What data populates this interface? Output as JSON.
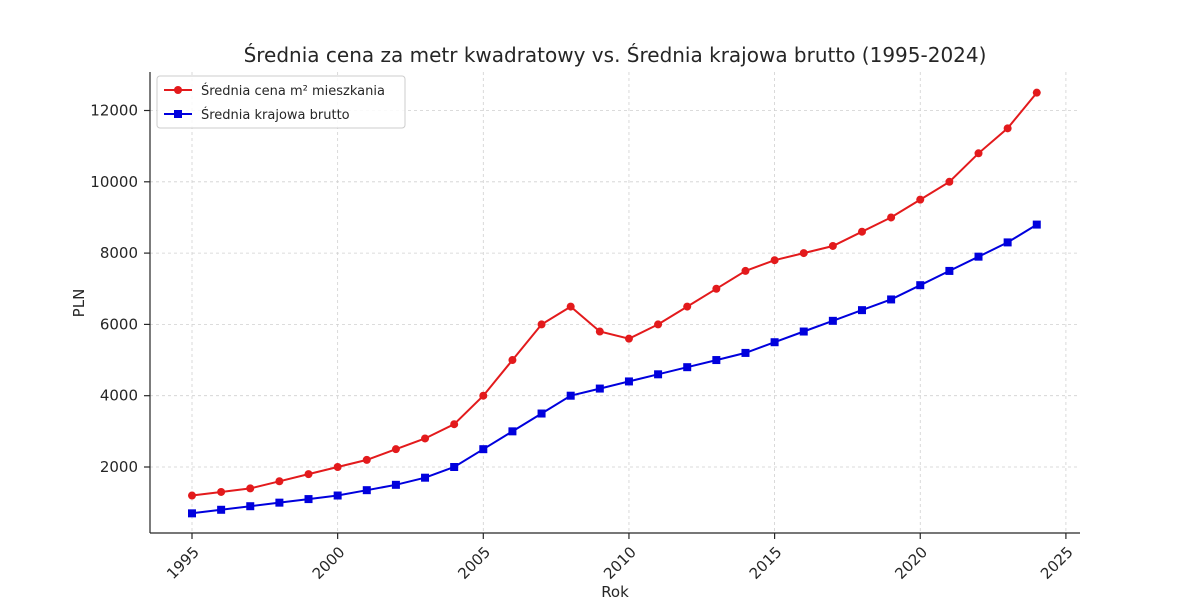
{
  "chart_data": {
    "type": "line",
    "title": "Średnia cena za metr kwadratowy vs. Średnia krajowa brutto (1995-2024)",
    "xlabel": "Rok",
    "ylabel": "PLN",
    "xlim": [
      1994,
      2025.5
    ],
    "ylim": [
      200,
      13000
    ],
    "x_ticks": [
      1995,
      2000,
      2005,
      2010,
      2015,
      2020,
      2025
    ],
    "y_ticks": [
      2000,
      4000,
      6000,
      8000,
      10000,
      12000
    ],
    "grid": true,
    "legend_position": "upper left",
    "x": [
      1995,
      1996,
      1997,
      1998,
      1999,
      2000,
      2001,
      2002,
      2003,
      2004,
      2005,
      2006,
      2007,
      2008,
      2009,
      2010,
      2011,
      2012,
      2013,
      2014,
      2015,
      2016,
      2017,
      2018,
      2019,
      2020,
      2021,
      2022,
      2023,
      2024
    ],
    "series": [
      {
        "name": "Średnia cena m² mieszkania",
        "color": "#e31a1c",
        "marker": "circle",
        "values": [
          1200,
          1300,
          1400,
          1600,
          1800,
          2000,
          2200,
          2500,
          2800,
          3200,
          4000,
          5000,
          6000,
          6500,
          5800,
          5600,
          6000,
          6500,
          7000,
          7500,
          7800,
          8000,
          8200,
          8600,
          9000,
          9500,
          10000,
          10800,
          11500,
          12500
        ]
      },
      {
        "name": "Średnia krajowa brutto",
        "color": "#0000dd",
        "marker": "square",
        "values": [
          700,
          800,
          900,
          1000,
          1100,
          1200,
          1350,
          1500,
          1700,
          2000,
          2500,
          3000,
          3500,
          4000,
          4200,
          4400,
          4600,
          4800,
          5000,
          5200,
          5500,
          5800,
          6100,
          6400,
          6700,
          7100,
          7500,
          7900,
          8300,
          8800
        ]
      }
    ]
  }
}
